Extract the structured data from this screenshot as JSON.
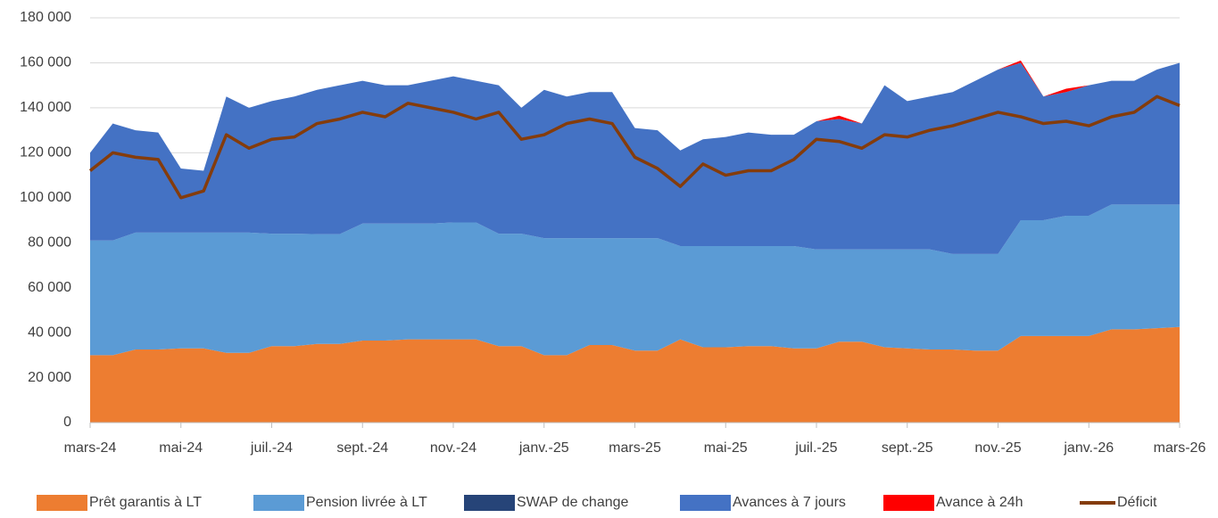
{
  "chart_data": {
    "type": "stacked-area",
    "categories": [
      "mars-24",
      null,
      null,
      null,
      "mai-24",
      null,
      null,
      null,
      "juil.-24",
      null,
      null,
      null,
      "sept.-24",
      null,
      null,
      null,
      "nov.-24",
      null,
      null,
      null,
      "janv.-25",
      null,
      null,
      null,
      "mars-25",
      null,
      null,
      null,
      "mai-25",
      null,
      null,
      null,
      "juil.-25",
      null,
      null,
      null,
      "sept.-25",
      null,
      null,
      null,
      "nov.-25",
      null,
      null,
      null,
      "janv.-26",
      null,
      null,
      null,
      "mars-26"
    ],
    "ylim": [
      0,
      180000
    ],
    "yticks": [
      0,
      {
        "value": 20000,
        "label": "20 000"
      },
      {
        "value": 40000,
        "label": "40 000"
      },
      {
        "value": 60000,
        "label": "60 000"
      },
      {
        "value": 80000,
        "label": "80 000"
      },
      {
        "value": 100000,
        "label": "100 000"
      },
      {
        "value": 120000,
        "label": "120 000"
      },
      {
        "value": 140000,
        "label": "140 000"
      },
      {
        "value": 160000,
        "label": "160 000"
      },
      {
        "value": 180000,
        "label": "180 000"
      }
    ],
    "grid": true,
    "legend": "bottom",
    "series": [
      {
        "name": "Prêt garantis à LT",
        "type": "area",
        "color": "#ed7d31",
        "values": [
          30000,
          30000,
          32500,
          32500,
          33000,
          33000,
          31000,
          31000,
          34000,
          34000,
          35000,
          35000,
          36500,
          36500,
          37000,
          37000,
          37000,
          37000,
          34000,
          34000,
          30000,
          30000,
          34500,
          34500,
          32000,
          32000,
          37000,
          33500,
          33500,
          34000,
          34000,
          33000,
          33000,
          36000,
          36000,
          33500,
          33000,
          32500,
          32500,
          32000,
          32000,
          38500,
          38500,
          38500,
          38500,
          41500,
          41500,
          42000,
          42500
        ]
      },
      {
        "name": "Pension livrée à  LT",
        "type": "area",
        "color": "#5b9bd5",
        "values": [
          51000,
          51000,
          52000,
          52000,
          51500,
          51500,
          53500,
          53500,
          50000,
          50000,
          48800,
          48800,
          52000,
          52000,
          51500,
          51500,
          52000,
          52000,
          50000,
          50000,
          52000,
          52000,
          47500,
          47500,
          50000,
          50000,
          41500,
          45000,
          45000,
          44500,
          44500,
          45500,
          44000,
          41000,
          41000,
          43500,
          44000,
          44500,
          42500,
          43000,
          43000,
          51500,
          51500,
          53500,
          53500,
          55500,
          55500,
          55000,
          54500
        ]
      },
      {
        "name": "SWAP de change",
        "type": "area",
        "color": "#264478",
        "values": [
          0,
          0,
          0,
          0,
          0,
          0,
          0,
          0,
          0,
          0,
          0,
          0,
          0,
          0,
          0,
          0,
          0,
          0,
          0,
          0,
          0,
          0,
          0,
          0,
          0,
          0,
          0,
          0,
          0,
          0,
          0,
          0,
          0,
          0,
          0,
          0,
          0,
          0,
          0,
          0,
          0,
          0,
          0,
          0,
          0,
          0,
          0,
          0,
          0
        ]
      },
      {
        "name": "Avances à 7 jours",
        "type": "area",
        "color": "#4472c4",
        "values": [
          39000,
          52000,
          45500,
          44500,
          28500,
          27500,
          60500,
          55500,
          59000,
          61000,
          64200,
          66200,
          63500,
          61500,
          61500,
          63500,
          65000,
          63000,
          66000,
          56000,
          66000,
          63000,
          65000,
          65000,
          49000,
          48000,
          42500,
          47500,
          48500,
          50500,
          49500,
          49500,
          57000,
          58000,
          56000,
          73000,
          66000,
          68000,
          72000,
          77000,
          82000,
          70000,
          55000,
          55000,
          58000,
          55000,
          55000,
          60000,
          63000
        ]
      },
      {
        "name": "Avance à 24h",
        "type": "area",
        "color": "#ff0000",
        "values": [
          0,
          0,
          0,
          0,
          0,
          0,
          0,
          0,
          0,
          0,
          0,
          0,
          0,
          0,
          0,
          0,
          0,
          0,
          0,
          0,
          0,
          0,
          0,
          0,
          0,
          0,
          0,
          0,
          0,
          0,
          0,
          0,
          0,
          1500,
          0,
          0,
          0,
          0,
          0,
          0,
          0,
          1000,
          0,
          1500,
          0,
          0,
          0,
          0,
          0
        ]
      },
      {
        "name": "Déficit",
        "type": "line",
        "color": "#843c0c",
        "values": [
          112000,
          120000,
          118000,
          117000,
          100000,
          103000,
          128000,
          122000,
          126000,
          127000,
          133000,
          135000,
          138000,
          136000,
          142000,
          140000,
          138000,
          135000,
          138000,
          126000,
          128000,
          133000,
          135000,
          133000,
          118000,
          113000,
          105000,
          115000,
          110000,
          112000,
          112000,
          117000,
          126000,
          125000,
          122000,
          128000,
          127000,
          130000,
          132000,
          135000,
          138000,
          136000,
          133000,
          134000,
          132000,
          136000,
          138000,
          145000,
          141000
        ]
      }
    ]
  }
}
